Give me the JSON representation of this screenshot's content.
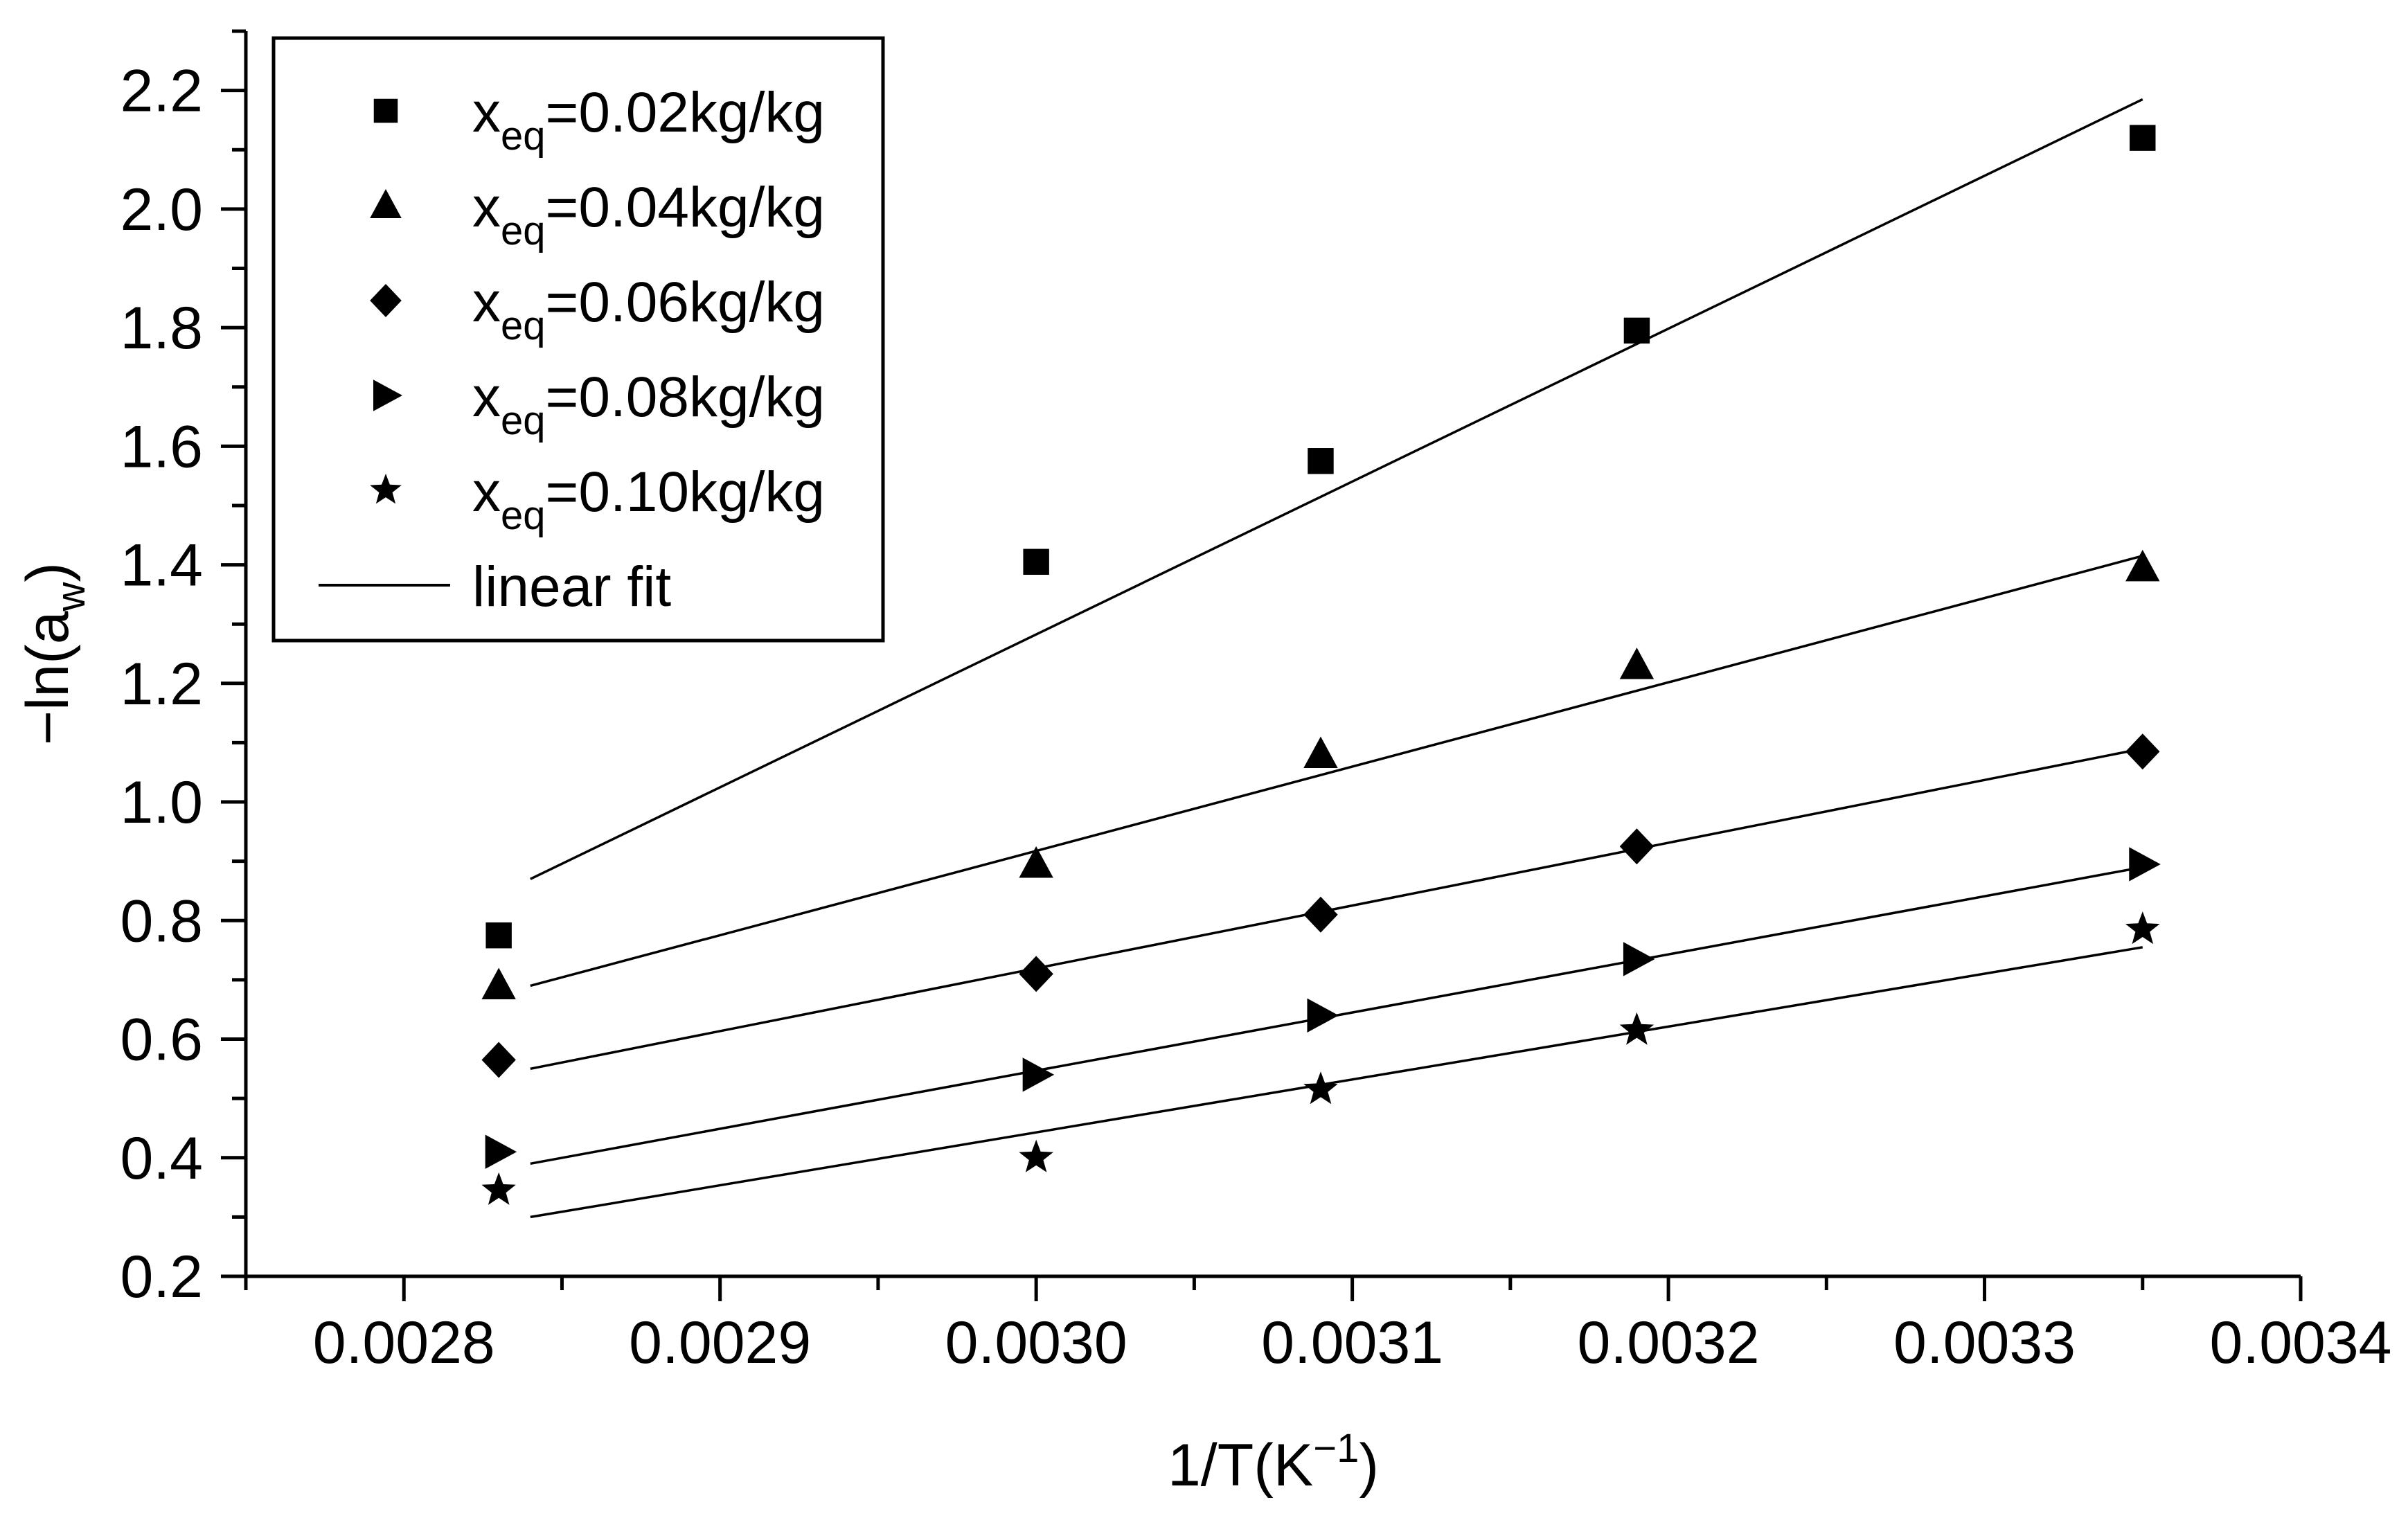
{
  "chart_data": {
    "type": "scatter",
    "title": "",
    "xlabel": {
      "base": "1/T(K",
      "sup": "−1",
      "tail": ")"
    },
    "ylabel": {
      "base": "−ln(a",
      "sub": "w",
      "tail": ")"
    },
    "xlim": [
      0.00275,
      0.0034
    ],
    "ylim": [
      0.2,
      2.3
    ],
    "x_ticks": [
      0.0028,
      0.0029,
      0.003,
      0.0031,
      0.0032,
      0.0033,
      0.0034
    ],
    "x_tick_labels": [
      "0.0028",
      "0.0029",
      "0.0030",
      "0.0031",
      "0.0032",
      "0.0033",
      "0.0034"
    ],
    "y_ticks": [
      0.2,
      0.4,
      0.6,
      0.8,
      1.0,
      1.2,
      1.4,
      1.6,
      1.8,
      2.0,
      2.2
    ],
    "y_tick_labels": [
      "0.2",
      "0.4",
      "0.6",
      "0.8",
      "1.0",
      "1.2",
      "1.4",
      "1.6",
      "1.8",
      "2.0",
      "2.2"
    ],
    "grid": false,
    "legend_position": "top-left",
    "series": [
      {
        "name": "x_eq=0.02kg/kg",
        "label_base": "x",
        "label_sub": "eq",
        "label_tail": "=0.02kg/kg",
        "marker": "square",
        "x": [
          0.00283,
          0.003,
          0.00309,
          0.00319,
          0.00335
        ],
        "y": [
          0.775,
          1.405,
          1.575,
          1.795,
          2.12
        ],
        "fit": [
          [
            0.00284,
            0.87
          ],
          [
            0.00335,
            2.185
          ]
        ]
      },
      {
        "name": "x_eq=0.04kg/kg",
        "label_base": "x",
        "label_sub": "eq",
        "label_tail": "=0.04kg/kg",
        "marker": "triangle",
        "x": [
          0.00283,
          0.003,
          0.00309,
          0.00319,
          0.00335
        ],
        "y": [
          0.69,
          0.895,
          1.08,
          1.23,
          1.395
        ],
        "fit": [
          [
            0.00284,
            0.69
          ],
          [
            0.00335,
            1.415
          ]
        ]
      },
      {
        "name": "x_eq=0.06kg/kg",
        "label_base": "x",
        "label_sub": "eq",
        "label_tail": "=0.06kg/kg",
        "marker": "diamond",
        "x": [
          0.00283,
          0.003,
          0.00309,
          0.00319,
          0.00335
        ],
        "y": [
          0.565,
          0.71,
          0.81,
          0.925,
          1.085
        ],
        "fit": [
          [
            0.00284,
            0.55
          ],
          [
            0.00335,
            1.09
          ]
        ]
      },
      {
        "name": "x_eq=0.08kg/kg",
        "label_base": "x",
        "label_sub": "eq",
        "label_tail": "=0.08kg/kg",
        "marker": "right-triangle",
        "x": [
          0.00283,
          0.003,
          0.00309,
          0.00319,
          0.00335
        ],
        "y": [
          0.41,
          0.54,
          0.64,
          0.735,
          0.895
        ],
        "fit": [
          [
            0.00284,
            0.39
          ],
          [
            0.00335,
            0.89
          ]
        ]
      },
      {
        "name": "x_eq=0.10kg/kg",
        "label_base": "x",
        "label_sub": "eq",
        "label_tail": "=0.10kg/kg",
        "marker": "star",
        "x": [
          0.00283,
          0.003,
          0.00309,
          0.00319,
          0.00335
        ],
        "y": [
          0.345,
          0.4,
          0.515,
          0.615,
          0.785
        ],
        "fit": [
          [
            0.00284,
            0.3
          ],
          [
            0.00335,
            0.755
          ]
        ]
      }
    ],
    "fit_legend_label": "linear fit",
    "colors": {
      "ink": "#000000",
      "background": "#ffffff"
    }
  }
}
